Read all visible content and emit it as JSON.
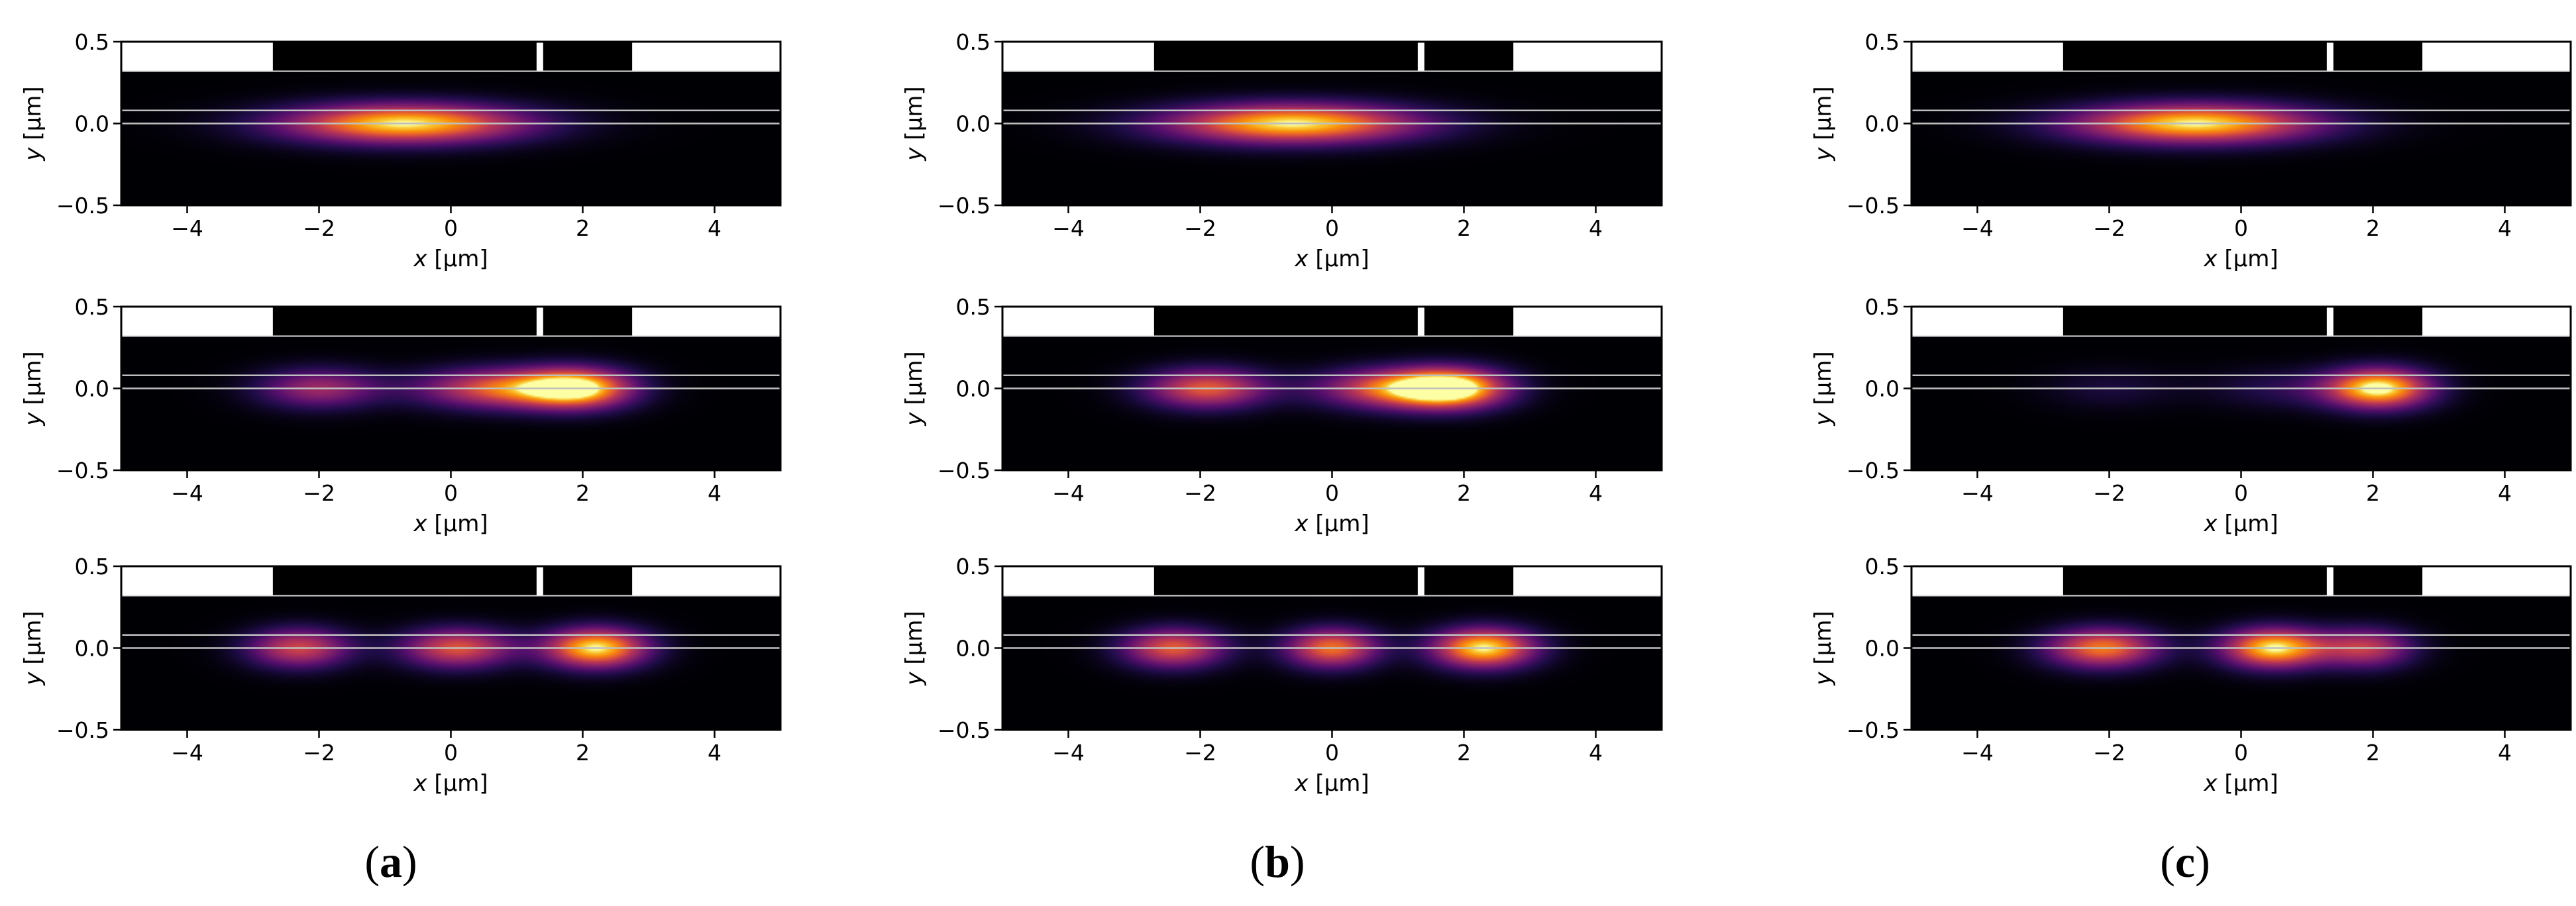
{
  "figure": {
    "panel_labels": [
      {
        "open": "(",
        "letter": "a",
        "close": ")"
      },
      {
        "open": "(",
        "letter": "b",
        "close": ")"
      },
      {
        "open": "(",
        "letter": "c",
        "close": ")"
      }
    ]
  },
  "colors": {
    "background": "#000000",
    "cladding_rect": "#ffffff",
    "guide_lines": "#bfbfbf",
    "colormap": "inferno"
  },
  "chart_data": [
    {
      "type": "heatmap",
      "panel": "a",
      "row": 1,
      "xlabel_prefix": "x",
      "xlabel_unit": " [µm]",
      "ylabel_prefix": "y",
      "ylabel_unit": " [µm]",
      "xlim": [
        -5,
        5
      ],
      "ylim": [
        -0.5,
        0.5
      ],
      "xticks": [
        -4,
        -2,
        0,
        2,
        4
      ],
      "yticks": [
        -0.5,
        0.0,
        0.5
      ],
      "xticklabels": [
        "−4",
        "−2",
        "0",
        "2",
        "4"
      ],
      "yticklabels": [
        "−0.5",
        "0.0",
        "0.5"
      ],
      "lobes": [
        {
          "x": -0.7,
          "sx": 1.3,
          "amp": 1.0
        }
      ]
    },
    {
      "type": "heatmap",
      "panel": "a",
      "row": 2,
      "xlabel_prefix": "x",
      "xlabel_unit": " [µm]",
      "ylabel_prefix": "y",
      "ylabel_unit": " [µm]",
      "xlim": [
        -5,
        5
      ],
      "ylim": [
        -0.5,
        0.5
      ],
      "xticks": [
        -4,
        -2,
        0,
        2,
        4
      ],
      "yticks": [
        -0.5,
        0.0,
        0.5
      ],
      "xticklabels": [
        "−4",
        "−2",
        "0",
        "2",
        "4"
      ],
      "yticklabels": [
        "−0.5",
        "0.0",
        "0.5"
      ],
      "lobes": [
        {
          "x": -2.0,
          "sx": 0.65,
          "amp": 0.5
        },
        {
          "x": 0.7,
          "sx": 0.85,
          "amp": 0.7
        },
        {
          "x": 1.9,
          "sx": 0.6,
          "amp": 1.0
        }
      ]
    },
    {
      "type": "heatmap",
      "panel": "a",
      "row": 3,
      "xlabel_prefix": "x",
      "xlabel_unit": " [µm]",
      "ylabel_prefix": "y",
      "ylabel_unit": " [µm]",
      "xlim": [
        -5,
        5
      ],
      "ylim": [
        -0.5,
        0.5
      ],
      "xticks": [
        -4,
        -2,
        0,
        2,
        4
      ],
      "yticks": [
        -0.5,
        0.0,
        0.5
      ],
      "xticklabels": [
        "−4",
        "−2",
        "0",
        "2",
        "4"
      ],
      "yticklabels": [
        "−0.5",
        "0.0",
        "0.5"
      ],
      "lobes": [
        {
          "x": -2.3,
          "sx": 0.55,
          "amp": 0.65
        },
        {
          "x": 0.1,
          "sx": 0.6,
          "amp": 0.7
        },
        {
          "x": 2.2,
          "sx": 0.55,
          "amp": 1.0
        }
      ]
    },
    {
      "type": "heatmap",
      "panel": "b",
      "row": 1,
      "xlabel_prefix": "x",
      "xlabel_unit": " [µm]",
      "ylabel_prefix": "y",
      "ylabel_unit": " [µm]",
      "xlim": [
        -5,
        5
      ],
      "ylim": [
        -0.5,
        0.5
      ],
      "xticks": [
        -4,
        -2,
        0,
        2,
        4
      ],
      "yticks": [
        -0.5,
        0.0,
        0.5
      ],
      "xticklabels": [
        "−4",
        "−2",
        "0",
        "2",
        "4"
      ],
      "yticklabels": [
        "−0.5",
        "0.0",
        "0.5"
      ],
      "lobes": [
        {
          "x": -0.6,
          "sx": 1.35,
          "amp": 1.0
        }
      ]
    },
    {
      "type": "heatmap",
      "panel": "b",
      "row": 2,
      "xlabel_prefix": "x",
      "xlabel_unit": " [µm]",
      "ylabel_prefix": "y",
      "ylabel_unit": " [µm]",
      "xlim": [
        -5,
        5
      ],
      "ylim": [
        -0.5,
        0.5
      ],
      "xticks": [
        -4,
        -2,
        0,
        2,
        4
      ],
      "yticks": [
        -0.5,
        0.0,
        0.5
      ],
      "xticklabels": [
        "−4",
        "−2",
        "0",
        "2",
        "4"
      ],
      "yticklabels": [
        "−0.5",
        "0.0",
        "0.5"
      ],
      "lobes": [
        {
          "x": -1.9,
          "sx": 0.65,
          "amp": 0.72
        },
        {
          "x": 0.9,
          "sx": 0.8,
          "amp": 0.7
        },
        {
          "x": 1.8,
          "sx": 0.6,
          "amp": 1.0
        }
      ]
    },
    {
      "type": "heatmap",
      "panel": "b",
      "row": 3,
      "xlabel_prefix": "x",
      "xlabel_unit": " [µm]",
      "ylabel_prefix": "y",
      "ylabel_unit": " [µm]",
      "xlim": [
        -5,
        5
      ],
      "ylim": [
        -0.5,
        0.5
      ],
      "xticks": [
        -4,
        -2,
        0,
        2,
        4
      ],
      "yticks": [
        -0.5,
        0.0,
        0.5
      ],
      "xticklabels": [
        "−4",
        "−2",
        "0",
        "2",
        "4"
      ],
      "yticklabels": [
        "−0.5",
        "0.0",
        "0.5"
      ],
      "lobes": [
        {
          "x": -2.4,
          "sx": 0.55,
          "amp": 0.72
        },
        {
          "x": 0.0,
          "sx": 0.5,
          "amp": 0.78
        },
        {
          "x": 2.3,
          "sx": 0.55,
          "amp": 1.0
        }
      ]
    },
    {
      "type": "heatmap",
      "panel": "c",
      "row": 1,
      "xlabel_prefix": "x",
      "xlabel_unit": " [µm]",
      "ylabel_prefix": "y",
      "ylabel_unit": " [µm]",
      "xlim": [
        -5,
        5
      ],
      "ylim": [
        -0.5,
        0.5
      ],
      "xticks": [
        -4,
        -2,
        0,
        2,
        4
      ],
      "yticks": [
        -0.5,
        0.0,
        0.5
      ],
      "xticklabels": [
        "−4",
        "−2",
        "0",
        "2",
        "4"
      ],
      "yticklabels": [
        "−0.5",
        "0.0",
        "0.5"
      ],
      "lobes": [
        {
          "x": -0.7,
          "sx": 1.3,
          "amp": 1.0
        }
      ]
    },
    {
      "type": "heatmap",
      "panel": "c",
      "row": 2,
      "xlabel_prefix": "x",
      "xlabel_unit": " [µm]",
      "ylabel_prefix": "y",
      "ylabel_unit": " [µm]",
      "xlim": [
        -5,
        5
      ],
      "ylim": [
        -0.5,
        0.5
      ],
      "xticks": [
        -4,
        -2,
        0,
        2,
        4
      ],
      "yticks": [
        -0.5,
        0.0,
        0.5
      ],
      "xticklabels": [
        "−4",
        "−2",
        "0",
        "2",
        "4"
      ],
      "yticklabels": [
        "−0.5",
        "0.0",
        "0.5"
      ],
      "lobes": [
        {
          "x": -2.0,
          "sx": 0.7,
          "amp": 0.12
        },
        {
          "x": 0.8,
          "sx": 0.9,
          "amp": 0.18
        },
        {
          "x": 2.1,
          "sx": 0.55,
          "amp": 1.0
        }
      ]
    },
    {
      "type": "heatmap",
      "panel": "c",
      "row": 3,
      "xlabel_prefix": "x",
      "xlabel_unit": " [µm]",
      "ylabel_prefix": "y",
      "ylabel_unit": " [µm]",
      "xlim": [
        -5,
        5
      ],
      "ylim": [
        -0.5,
        0.5
      ],
      "xticks": [
        -4,
        -2,
        0,
        2,
        4
      ],
      "yticks": [
        -0.5,
        0.0,
        0.5
      ],
      "xticklabels": [
        "−4",
        "−2",
        "0",
        "2",
        "4"
      ],
      "yticklabels": [
        "−0.5",
        "0.0",
        "0.5"
      ],
      "lobes": [
        {
          "x": -2.1,
          "sx": 0.6,
          "amp": 0.8
        },
        {
          "x": 0.5,
          "sx": 0.55,
          "amp": 1.0
        },
        {
          "x": 1.9,
          "sx": 0.5,
          "amp": 0.6
        }
      ]
    }
  ],
  "structure": {
    "cladding_top_y": 0.32,
    "guide_lines_y": [
      0.08,
      0.0
    ],
    "slots_x": [
      [
        -2.7,
        1.3
      ],
      [
        1.4,
        2.75
      ]
    ]
  }
}
